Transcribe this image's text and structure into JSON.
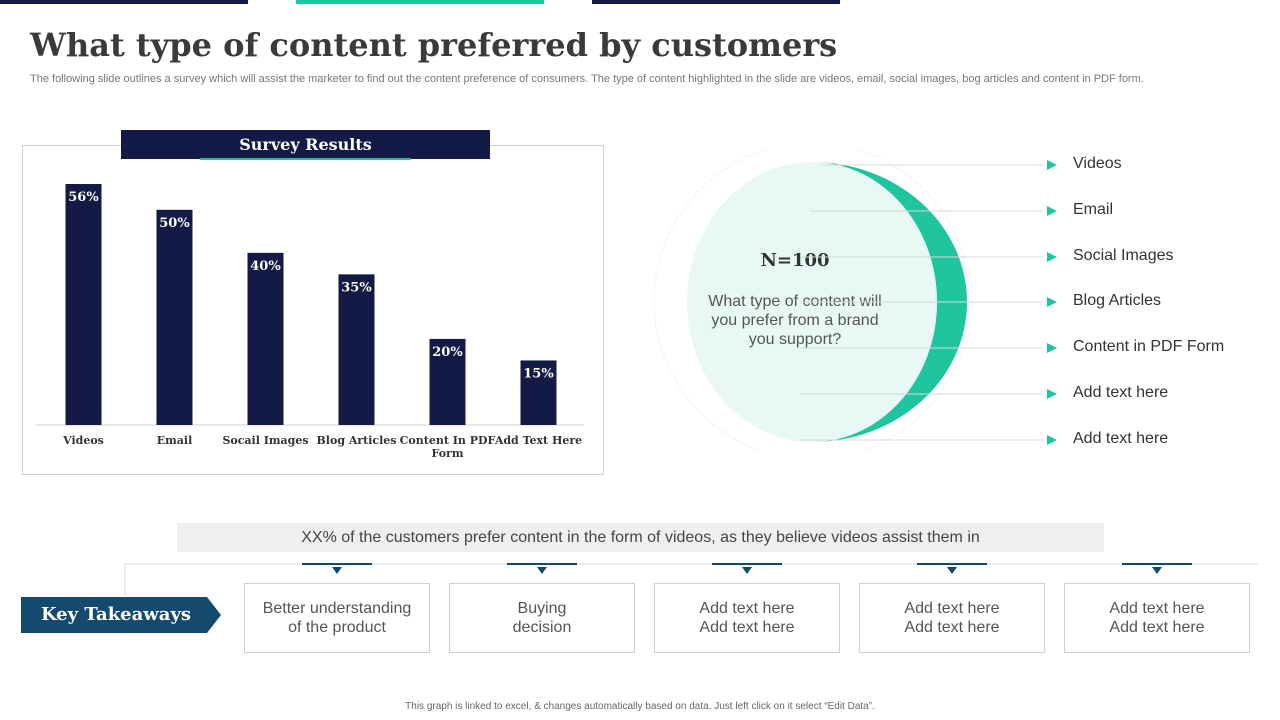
{
  "title": "What type of content preferred by customers",
  "subtitle": "The following slide outlines a survey which will assist the marketer to find out the content preference of consumers. The type  of content highlighted in the slide are videos, email, social images, bog articles and content in PDF form.",
  "chart_header": "Survey Results",
  "chart_data": {
    "type": "bar",
    "title": "Survey Results",
    "categories": [
      "Videos",
      "Email",
      "Socail Images",
      "Blog Articles",
      "Content In PDF Form",
      "Add Text Here"
    ],
    "values": [
      56,
      50,
      40,
      35,
      20,
      15
    ],
    "data_labels": [
      "56%",
      "50%",
      "40%",
      "35%",
      "20%",
      "15%"
    ],
    "ylim": [
      0,
      56
    ],
    "grid": false,
    "color": "#121a45"
  },
  "sample": "N=100",
  "question": "What type of content will you prefer from a brand you support?",
  "options": [
    "Videos",
    "Email",
    "Social Images",
    "Blog Articles",
    "Content in PDF Form",
    "Add text here",
    "Add text here"
  ],
  "summary": "XX% of the customers prefer content in the form of videos, as they believe videos assist them in",
  "key_takeaways_label": "Key Takeaways",
  "takeaways": [
    {
      "line1": "Better understanding",
      "line2": "of the product"
    },
    {
      "line1": "Buying",
      "line2": "decision"
    },
    {
      "line1": "Add text here",
      "line2": "Add text here"
    },
    {
      "line1": "Add text here",
      "line2": "Add text here"
    },
    {
      "line1": "Add text here",
      "line2": "Add text here"
    }
  ],
  "footer": "This graph is linked to excel, & changes automatically  based on data. Just left click on it select “Edit Data”.",
  "colors": {
    "navy": "#121a45",
    "teal": "#1fc59f",
    "mint": "#e8f8f4",
    "takeaway_blue": "#144a6e"
  },
  "icons": {
    "option_marker": "triangle-right-icon",
    "connector_marker": "triangle-down-icon"
  }
}
